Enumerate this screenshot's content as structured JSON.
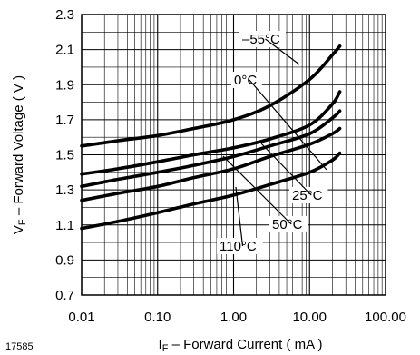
{
  "chart_data": {
    "type": "line",
    "figure_id": "17585",
    "xlabel_main": "I",
    "xlabel_sub": "F",
    "xlabel_rest": " – Forward Current ( mA )",
    "ylabel_main": "V",
    "ylabel_sub": "F",
    "ylabel_rest": " – Forward Voltage ( V )",
    "x_scale": "log",
    "xlim": [
      0.01,
      100
    ],
    "ylim": [
      0.7,
      2.3
    ],
    "grid": true,
    "x_ticks": [
      "0.01",
      "0.10",
      "1.00",
      "10.00",
      "100.00"
    ],
    "y_ticks": [
      "0.7",
      "0.9",
      "1.1",
      "1.3",
      "1.5",
      "1.7",
      "1.9",
      "2.1",
      "2.3"
    ],
    "series": [
      {
        "name": "–55°C",
        "x": [
          0.01,
          0.03,
          0.1,
          0.3,
          1,
          3,
          10,
          20,
          25
        ],
        "y": [
          1.55,
          1.58,
          1.61,
          1.65,
          1.7,
          1.78,
          1.93,
          2.07,
          2.12
        ]
      },
      {
        "name": "0°C",
        "x": [
          0.01,
          0.03,
          0.1,
          0.3,
          1,
          3,
          10,
          20,
          25
        ],
        "y": [
          1.39,
          1.42,
          1.46,
          1.5,
          1.54,
          1.59,
          1.67,
          1.79,
          1.86
        ]
      },
      {
        "name": "25°C",
        "x": [
          0.01,
          0.03,
          0.1,
          0.3,
          1,
          3,
          10,
          20,
          25
        ],
        "y": [
          1.32,
          1.36,
          1.4,
          1.44,
          1.49,
          1.55,
          1.62,
          1.71,
          1.75
        ]
      },
      {
        "name": "50°C",
        "x": [
          0.01,
          0.03,
          0.1,
          0.3,
          1,
          3,
          10,
          20,
          25
        ],
        "y": [
          1.24,
          1.28,
          1.32,
          1.37,
          1.42,
          1.49,
          1.56,
          1.62,
          1.65
        ]
      },
      {
        "name": "110°C",
        "x": [
          0.01,
          0.03,
          0.1,
          0.3,
          1,
          3,
          10,
          20,
          25
        ],
        "y": [
          1.08,
          1.12,
          1.17,
          1.22,
          1.27,
          1.33,
          1.4,
          1.47,
          1.51
        ]
      }
    ]
  }
}
